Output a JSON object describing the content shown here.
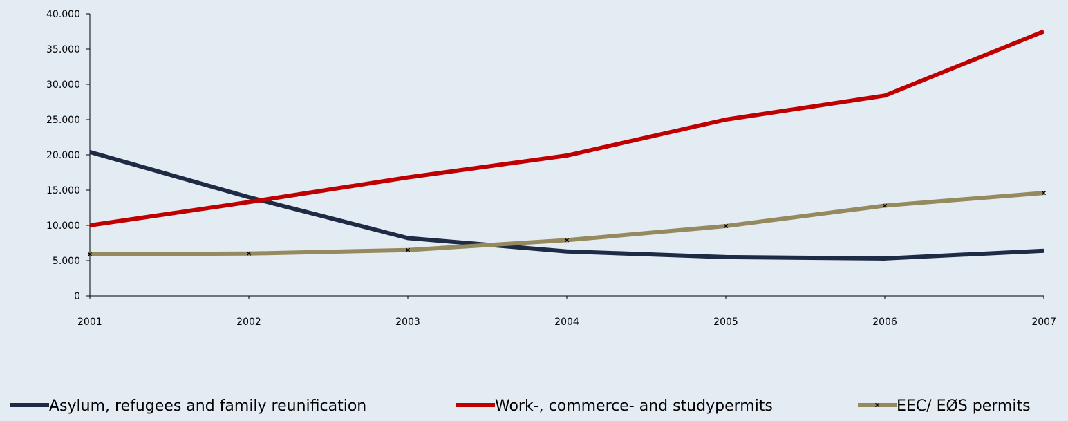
{
  "chart_data": {
    "type": "line",
    "title": "",
    "xlabel": "",
    "ylabel": "",
    "categories": [
      "2001",
      "2002",
      "2003",
      "2004",
      "2005",
      "2006",
      "2007"
    ],
    "ylim": [
      0,
      40000
    ],
    "yticks": [
      0,
      5000,
      10000,
      15000,
      20000,
      25000,
      30000,
      35000,
      40000
    ],
    "ytick_labels": [
      "0",
      "5.000",
      "10.000",
      "15.000",
      "20.000",
      "25.000",
      "30.000",
      "35.000",
      "40.000"
    ],
    "grid": false,
    "legend_position": "bottom",
    "series": [
      {
        "name": "Asylum, refugees and family reunification",
        "color": "#1d2b45",
        "marker": "none",
        "values": [
          20400,
          14000,
          8200,
          6300,
          5500,
          5300,
          6400
        ]
      },
      {
        "name": "Work-, commerce- and studypermits",
        "color": "#c00000",
        "marker": "none",
        "values": [
          10000,
          13300,
          16800,
          19900,
          25000,
          28400,
          37500
        ]
      },
      {
        "name": "EEC/ EØS permits",
        "color": "#948a5e",
        "marker": "x",
        "values": [
          5900,
          6000,
          6500,
          7900,
          9900,
          12800,
          14600
        ]
      }
    ]
  }
}
